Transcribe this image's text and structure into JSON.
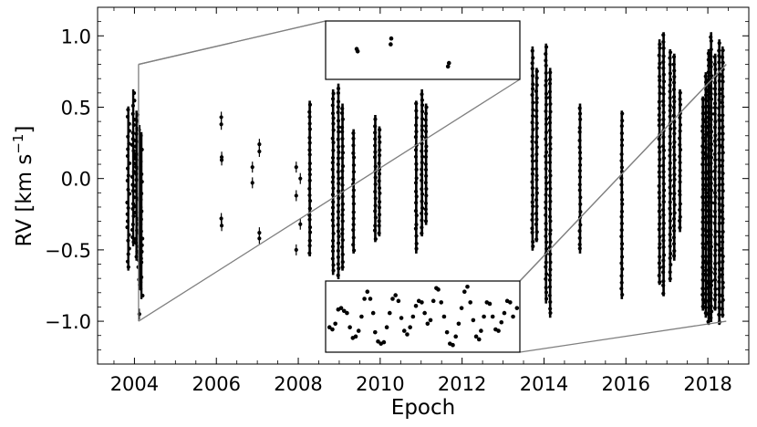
{
  "chart_data": {
    "type": "scatter",
    "xlabel": "Epoch",
    "ylabel": "RV [km s",
    "ylabel_sup": "−1",
    "ylabel_close": "]",
    "xlim": [
      2003.1,
      2019.0
    ],
    "ylim": [
      -1.3,
      1.2
    ],
    "x_ticks": [
      2004,
      2006,
      2008,
      2010,
      2012,
      2014,
      2016,
      2018
    ],
    "x_ticklabels": [
      "2004",
      "2006",
      "2008",
      "2010",
      "2012",
      "2014",
      "2016",
      "2018"
    ],
    "y_ticks": [
      1.0,
      0.5,
      0.0,
      -0.5,
      -1.0
    ],
    "y_ticklabels": [
      "1.0",
      "0.5",
      "0.0",
      "−0.5",
      "−1.0"
    ],
    "point_color": "#000000",
    "errorbar_color": "#000000",
    "connector_color": "#808080",
    "series": [
      {
        "clusters": [
          {
            "x": 2003.85,
            "ymin": -0.62,
            "ymax": 0.48
          },
          {
            "x": 2003.97,
            "ymin": -0.45,
            "ymax": 0.6
          },
          {
            "x": 2004.05,
            "ymin": -0.55,
            "ymax": 0.45
          },
          {
            "x": 2004.12,
            "ymin": -0.75,
            "ymax": 0.35
          },
          {
            "x": 2004.17,
            "ymin": -0.82,
            "ymax": 0.3
          }
        ],
        "sparse": [
          [
            2004.12,
            -0.95
          ],
          [
            2006.12,
            0.43
          ],
          [
            2006.12,
            0.38
          ],
          [
            2006.13,
            0.15
          ],
          [
            2006.13,
            0.13
          ],
          [
            2006.12,
            -0.28
          ],
          [
            2006.13,
            -0.33
          ],
          [
            2006.88,
            0.08
          ],
          [
            2006.88,
            -0.03
          ],
          [
            2007.05,
            0.24
          ],
          [
            2007.05,
            0.19
          ],
          [
            2007.05,
            -0.38
          ],
          [
            2007.05,
            -0.42
          ],
          [
            2007.95,
            0.08
          ],
          [
            2007.95,
            -0.12
          ],
          [
            2007.95,
            -0.5
          ],
          [
            2008.05,
            0.0
          ],
          [
            2008.05,
            -0.32
          ]
        ],
        "columns": [
          {
            "x": 2008.28,
            "ymin": -0.52,
            "ymax": 0.52
          },
          {
            "x": 2008.85,
            "ymin": -0.65,
            "ymax": 0.6
          },
          {
            "x": 2008.98,
            "ymin": -0.68,
            "ymax": 0.64
          },
          {
            "x": 2009.08,
            "ymin": -0.62,
            "ymax": 0.5
          },
          {
            "x": 2009.35,
            "ymin": -0.5,
            "ymax": 0.32
          },
          {
            "x": 2009.88,
            "ymin": -0.42,
            "ymax": 0.42
          },
          {
            "x": 2009.98,
            "ymin": -0.38,
            "ymax": 0.34
          },
          {
            "x": 2010.88,
            "ymin": -0.5,
            "ymax": 0.52
          },
          {
            "x": 2011.02,
            "ymin": -0.38,
            "ymax": 0.6
          },
          {
            "x": 2011.12,
            "ymin": -0.3,
            "ymax": 0.5
          },
          {
            "x": 2013.72,
            "ymin": -0.48,
            "ymax": 0.9
          },
          {
            "x": 2013.82,
            "ymin": -0.42,
            "ymax": 0.75
          },
          {
            "x": 2014.05,
            "ymin": -0.85,
            "ymax": 0.92
          },
          {
            "x": 2014.15,
            "ymin": -0.95,
            "ymax": 0.75
          },
          {
            "x": 2014.88,
            "ymin": -0.5,
            "ymax": 0.5
          },
          {
            "x": 2015.9,
            "ymin": -0.82,
            "ymax": 0.45
          },
          {
            "x": 2016.82,
            "ymin": -0.72,
            "ymax": 0.95
          },
          {
            "x": 2016.92,
            "ymin": -0.8,
            "ymax": 1.0
          },
          {
            "x": 2017.08,
            "ymin": -0.7,
            "ymax": 0.88
          },
          {
            "x": 2017.18,
            "ymin": -0.55,
            "ymax": 0.85
          },
          {
            "x": 2017.32,
            "ymin": -0.35,
            "ymax": 0.6
          },
          {
            "x": 2017.88,
            "ymin": -0.9,
            "ymax": 0.55
          },
          {
            "x": 2017.95,
            "ymin": -0.95,
            "ymax": 0.72
          },
          {
            "x": 2018.02,
            "ymin": -1.0,
            "ymax": 0.88
          },
          {
            "x": 2018.08,
            "ymin": -0.98,
            "ymax": 1.0
          },
          {
            "x": 2018.18,
            "ymin": -0.9,
            "ymax": 0.85
          },
          {
            "x": 2018.28,
            "ymin": -1.0,
            "ymax": 0.95
          },
          {
            "x": 2018.36,
            "ymin": -0.95,
            "ymax": 0.9
          }
        ]
      }
    ],
    "insets": [
      {
        "position": "top-middle",
        "connectors_to": [
          [
            2004.1,
            0.8
          ],
          [
            2004.1,
            -1.0
          ]
        ],
        "points": [
          [
            0.16,
            0.52
          ],
          [
            0.165,
            0.48
          ],
          [
            0.335,
            0.6
          ],
          [
            0.338,
            0.7
          ],
          [
            0.63,
            0.22
          ],
          [
            0.635,
            0.28
          ]
        ]
      },
      {
        "position": "bottom-middle",
        "connectors_to": [
          [
            2018.45,
            0.8
          ],
          [
            2018.45,
            -1.0
          ]
        ],
        "points": [
          [
            0.02,
            0.35
          ],
          [
            0.035,
            0.32
          ],
          [
            0.05,
            0.4
          ],
          [
            0.065,
            0.6
          ],
          [
            0.08,
            0.62
          ],
          [
            0.095,
            0.58
          ],
          [
            0.11,
            0.55
          ],
          [
            0.125,
            0.35
          ],
          [
            0.14,
            0.2
          ],
          [
            0.155,
            0.22
          ],
          [
            0.17,
            0.3
          ],
          [
            0.185,
            0.5
          ],
          [
            0.2,
            0.75
          ],
          [
            0.215,
            0.85
          ],
          [
            0.23,
            0.75
          ],
          [
            0.245,
            0.55
          ],
          [
            0.255,
            0.28
          ],
          [
            0.27,
            0.15
          ],
          [
            0.285,
            0.12
          ],
          [
            0.3,
            0.14
          ],
          [
            0.315,
            0.35
          ],
          [
            0.33,
            0.55
          ],
          [
            0.345,
            0.75
          ],
          [
            0.36,
            0.8
          ],
          [
            0.375,
            0.72
          ],
          [
            0.39,
            0.48
          ],
          [
            0.405,
            0.3
          ],
          [
            0.42,
            0.25
          ],
          [
            0.435,
            0.35
          ],
          [
            0.45,
            0.5
          ],
          [
            0.465,
            0.65
          ],
          [
            0.48,
            0.72
          ],
          [
            0.495,
            0.7
          ],
          [
            0.51,
            0.55
          ],
          [
            0.525,
            0.4
          ],
          [
            0.54,
            0.45
          ],
          [
            0.555,
            0.72
          ],
          [
            0.57,
            0.9
          ],
          [
            0.58,
            0.88
          ],
          [
            0.595,
            0.7
          ],
          [
            0.61,
            0.5
          ],
          [
            0.625,
            0.28
          ],
          [
            0.64,
            0.12
          ],
          [
            0.655,
            0.1
          ],
          [
            0.67,
            0.22
          ],
          [
            0.685,
            0.4
          ],
          [
            0.7,
            0.62
          ],
          [
            0.715,
            0.85
          ],
          [
            0.73,
            0.92
          ],
          [
            0.745,
            0.7
          ],
          [
            0.76,
            0.45
          ],
          [
            0.775,
            0.22
          ],
          [
            0.79,
            0.18
          ],
          [
            0.8,
            0.3
          ],
          [
            0.815,
            0.5
          ],
          [
            0.83,
            0.7
          ],
          [
            0.845,
            0.68
          ],
          [
            0.86,
            0.5
          ],
          [
            0.875,
            0.32
          ],
          [
            0.89,
            0.3
          ],
          [
            0.905,
            0.42
          ],
          [
            0.92,
            0.55
          ],
          [
            0.935,
            0.72
          ],
          [
            0.95,
            0.7
          ],
          [
            0.965,
            0.5
          ],
          [
            0.985,
            0.62
          ]
        ]
      }
    ]
  }
}
